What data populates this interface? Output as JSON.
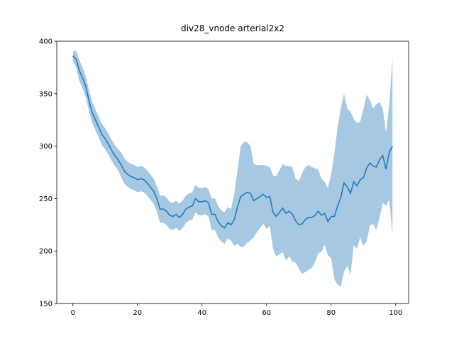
{
  "chart_data": {
    "type": "line_band",
    "title": "div28_vnode arterial2x2",
    "x": [
      0,
      1,
      2,
      3,
      4,
      5,
      6,
      7,
      8,
      9,
      10,
      11,
      12,
      13,
      14,
      15,
      16,
      17,
      18,
      19,
      20,
      21,
      22,
      23,
      24,
      25,
      26,
      27,
      28,
      29,
      30,
      31,
      32,
      33,
      34,
      35,
      36,
      37,
      38,
      39,
      40,
      41,
      42,
      43,
      44,
      45,
      46,
      47,
      48,
      49,
      50,
      51,
      52,
      53,
      54,
      55,
      56,
      57,
      58,
      59,
      60,
      61,
      62,
      63,
      64,
      65,
      66,
      67,
      68,
      69,
      70,
      71,
      72,
      73,
      74,
      75,
      76,
      77,
      78,
      79,
      80,
      81,
      82,
      83,
      84,
      85,
      86,
      87,
      88,
      89,
      90,
      91,
      92,
      93,
      94,
      95,
      96,
      97,
      98,
      99
    ],
    "series": [
      {
        "color": "#1f77b4",
        "band_color": "#a6c8e2",
        "values": [
          386,
          383,
          372,
          365,
          357,
          343,
          332,
          325,
          318,
          311,
          307,
          302,
          296,
          291,
          287,
          282,
          276,
          273,
          271,
          270,
          268,
          269,
          268,
          265,
          261,
          257,
          250,
          240,
          240,
          238,
          234,
          233,
          235,
          232,
          235,
          240,
          242,
          243,
          250,
          247,
          247,
          248,
          246,
          235,
          235,
          228,
          224,
          222,
          227,
          225,
          230,
          242,
          252,
          254,
          256,
          255,
          248,
          250,
          252,
          254,
          251,
          252,
          237,
          233,
          237,
          241,
          236,
          238,
          235,
          229,
          225,
          226,
          230,
          232,
          232,
          234,
          238,
          234,
          236,
          228,
          233,
          233,
          243,
          251,
          265,
          261,
          255,
          266,
          262,
          268,
          270,
          279,
          284,
          281,
          280,
          287,
          291,
          278,
          294,
          300
        ],
        "upper": [
          390,
          391,
          382,
          375,
          367,
          353,
          342,
          335,
          328,
          321,
          317,
          312,
          306,
          301,
          297,
          294,
          288,
          285,
          283,
          282,
          280,
          281,
          280,
          277,
          273,
          269,
          262,
          253,
          253,
          251,
          247,
          246,
          248,
          245,
          248,
          253,
          255,
          256,
          263,
          260,
          260,
          261,
          259,
          250,
          250,
          243,
          239,
          237,
          242,
          240,
          255,
          277,
          300,
          304,
          304,
          300,
          283,
          282,
          282,
          282,
          281,
          280,
          272,
          271,
          277,
          283,
          281,
          281,
          280,
          269,
          267,
          274,
          280,
          282,
          280,
          279,
          278,
          269,
          266,
          260,
          273,
          293,
          318,
          336,
          350,
          336,
          333,
          326,
          322,
          323,
          335,
          349,
          344,
          336,
          340,
          342,
          336,
          313,
          339,
          385
        ],
        "lower": [
          382,
          375,
          362,
          355,
          347,
          333,
          322,
          315,
          308,
          301,
          297,
          292,
          286,
          281,
          277,
          270,
          264,
          261,
          259,
          258,
          256,
          257,
          256,
          253,
          249,
          245,
          238,
          227,
          227,
          225,
          221,
          220,
          222,
          219,
          222,
          227,
          229,
          230,
          237,
          234,
          234,
          235,
          233,
          220,
          220,
          213,
          209,
          207,
          212,
          210,
          205,
          207,
          204,
          204,
          208,
          210,
          213,
          218,
          222,
          226,
          221,
          224,
          202,
          195,
          197,
          199,
          191,
          195,
          190,
          189,
          183,
          178,
          180,
          182,
          184,
          189,
          198,
          199,
          206,
          196,
          193,
          173,
          168,
          166,
          180,
          186,
          177,
          206,
          202,
          213,
          205,
          209,
          224,
          226,
          220,
          232,
          246,
          243,
          249,
          215
        ]
      }
    ],
    "xlim": [
      -5,
      104
    ],
    "ylim": [
      150,
      400
    ],
    "xticks": [
      0,
      20,
      40,
      60,
      80,
      100
    ],
    "yticks": [
      150,
      200,
      250,
      300,
      350,
      400
    ]
  }
}
